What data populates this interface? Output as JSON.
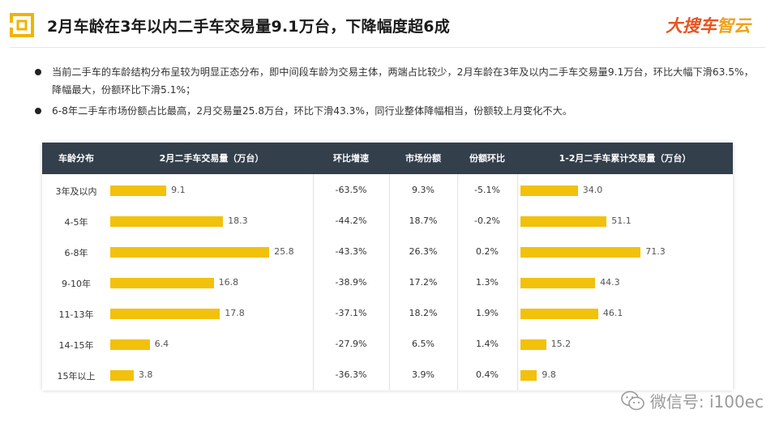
{
  "header": {
    "title": "2月车龄在3年以内二手车交易量9.1万台，下降幅度超6成",
    "logo_text_main": "大搜车",
    "logo_text_accent": "智云"
  },
  "bullets": [
    "当前二手车的车龄结构分布呈较为明显正态分布，即中间段车龄为交易主体，两端占比较少，2月车龄在3年及以内二手车交易量9.1万台，环比大幅下滑63.5%，降幅最大，份额环比下滑5.1%；",
    "6-8年二手车市场份额占比最高，2月交易量25.8万台，环比下滑43.3%，同行业整体降幅相当，份额较上月变化不大。"
  ],
  "chart_data": {
    "type": "table",
    "columns": [
      "车龄分布",
      "2月二手车交易量（万台）",
      "环比增速",
      "市场份额",
      "份额环比",
      "1-2月二手车累计交易量（万台）"
    ],
    "rows": [
      {
        "age": "3年及以内",
        "feb_volume": 9.1,
        "mom_growth": "-63.5%",
        "share": "9.3%",
        "share_mom": "-5.1%",
        "cum_volume": 34.0
      },
      {
        "age": "4-5年",
        "feb_volume": 18.3,
        "mom_growth": "-44.2%",
        "share": "18.7%",
        "share_mom": "-0.2%",
        "cum_volume": 51.1
      },
      {
        "age": "6-8年",
        "feb_volume": 25.8,
        "mom_growth": "-43.3%",
        "share": "26.3%",
        "share_mom": "0.2%",
        "cum_volume": 71.3
      },
      {
        "age": "9-10年",
        "feb_volume": 16.8,
        "mom_growth": "-38.9%",
        "share": "17.2%",
        "share_mom": "1.3%",
        "cum_volume": 44.3
      },
      {
        "age": "11-13年",
        "feb_volume": 17.8,
        "mom_growth": "-37.1%",
        "share": "18.2%",
        "share_mom": "1.9%",
        "cum_volume": 46.1
      },
      {
        "age": "14-15年",
        "feb_volume": 6.4,
        "mom_growth": "-27.9%",
        "share": "6.5%",
        "share_mom": "1.4%",
        "cum_volume": 15.2
      },
      {
        "age": "15年以上",
        "feb_volume": 3.8,
        "mom_growth": "-36.3%",
        "share": "3.9%",
        "share_mom": "0.4%",
        "cum_volume": 9.8
      }
    ]
  },
  "watermark": {
    "text": "微信号: i100ec",
    "icon": "wechat-icon"
  },
  "colors": {
    "bar": "#f2c10c",
    "header_bg": "#343f4c",
    "brand": "#e8531e",
    "brand_accent": "#f0a21a",
    "title_icon": "#f0b400"
  }
}
